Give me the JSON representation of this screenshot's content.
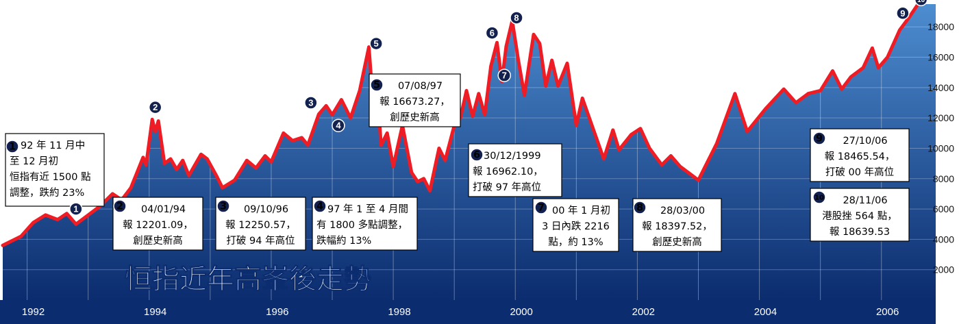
{
  "chart_data": {
    "type": "area",
    "title": "恒指近年高峯後走勢",
    "xlabel": "",
    "ylabel": "",
    "xlim": [
      1991.6,
      2006.8
    ],
    "ylim": [
      0,
      19500
    ],
    "y_ticks": [
      "2000",
      "4000",
      "6000",
      "8000",
      "10000",
      "12000",
      "14000",
      "16000",
      "18000"
    ],
    "x_ticks": [
      "1992",
      "1994",
      "1996",
      "1998",
      "2000",
      "2002",
      "2004",
      "2006"
    ],
    "series": [
      {
        "points": [
          [
            1991.6,
            3600
          ],
          [
            1991.9,
            4200
          ],
          [
            1992.1,
            5100
          ],
          [
            1992.3,
            5600
          ],
          [
            1992.5,
            5300
          ],
          [
            1992.65,
            5700
          ],
          [
            1992.8,
            5000
          ],
          [
            1992.9,
            5300
          ],
          [
            1993.2,
            6200
          ],
          [
            1993.4,
            7000
          ],
          [
            1993.55,
            6600
          ],
          [
            1993.7,
            7400
          ],
          [
            1993.9,
            9400
          ],
          [
            1993.95,
            8900
          ],
          [
            1994.05,
            11900
          ],
          [
            1994.1,
            11100
          ],
          [
            1994.15,
            11800
          ],
          [
            1994.25,
            9000
          ],
          [
            1994.35,
            9300
          ],
          [
            1994.45,
            8600
          ],
          [
            1994.55,
            9200
          ],
          [
            1994.65,
            8200
          ],
          [
            1994.85,
            9600
          ],
          [
            1994.95,
            9300
          ],
          [
            1995.1,
            8200
          ],
          [
            1995.2,
            7400
          ],
          [
            1995.4,
            7900
          ],
          [
            1995.6,
            9200
          ],
          [
            1995.75,
            8700
          ],
          [
            1995.9,
            9500
          ],
          [
            1996.0,
            9100
          ],
          [
            1996.2,
            11000
          ],
          [
            1996.35,
            10500
          ],
          [
            1996.5,
            10700
          ],
          [
            1996.6,
            10200
          ],
          [
            1996.78,
            12250
          ],
          [
            1996.9,
            12800
          ],
          [
            1997.0,
            12200
          ],
          [
            1997.15,
            13200
          ],
          [
            1997.3,
            12000
          ],
          [
            1997.45,
            13800
          ],
          [
            1997.6,
            16673
          ],
          [
            1997.65,
            14000
          ],
          [
            1997.72,
            14800
          ],
          [
            1997.8,
            10200
          ],
          [
            1997.9,
            11000
          ],
          [
            1998.0,
            8800
          ],
          [
            1998.15,
            11500
          ],
          [
            1998.3,
            8400
          ],
          [
            1998.4,
            7800
          ],
          [
            1998.5,
            8000
          ],
          [
            1998.6,
            7200
          ],
          [
            1998.75,
            10000
          ],
          [
            1998.85,
            9200
          ],
          [
            1999.0,
            11500
          ],
          [
            1999.1,
            12000
          ],
          [
            1999.2,
            13800
          ],
          [
            1999.3,
            12100
          ],
          [
            1999.4,
            13600
          ],
          [
            1999.5,
            12200
          ],
          [
            1999.6,
            15400
          ],
          [
            1999.7,
            16962
          ],
          [
            1999.78,
            14400
          ],
          [
            1999.85,
            16700
          ],
          [
            1999.95,
            18397
          ],
          [
            2000.05,
            15800
          ],
          [
            2000.15,
            13500
          ],
          [
            2000.3,
            17500
          ],
          [
            2000.4,
            16900
          ],
          [
            2000.5,
            14100
          ],
          [
            2000.6,
            15800
          ],
          [
            2000.7,
            14100
          ],
          [
            2000.85,
            15600
          ],
          [
            2001.0,
            11500
          ],
          [
            2001.1,
            13300
          ],
          [
            2001.3,
            11000
          ],
          [
            2001.45,
            9300
          ],
          [
            2001.6,
            11200
          ],
          [
            2001.7,
            9900
          ],
          [
            2001.9,
            10900
          ],
          [
            2002.05,
            11300
          ],
          [
            2002.2,
            10000
          ],
          [
            2002.4,
            8900
          ],
          [
            2002.55,
            9500
          ],
          [
            2002.7,
            8800
          ],
          [
            2002.9,
            8200
          ],
          [
            2003.0,
            7900
          ],
          [
            2003.3,
            10300
          ],
          [
            2003.6,
            13600
          ],
          [
            2003.8,
            11100
          ],
          [
            2004.1,
            12600
          ],
          [
            2004.4,
            13900
          ],
          [
            2004.6,
            13000
          ],
          [
            2004.8,
            13600
          ],
          [
            2005.0,
            13800
          ],
          [
            2005.2,
            15100
          ],
          [
            2005.35,
            13900
          ],
          [
            2005.5,
            14700
          ],
          [
            2005.7,
            15300
          ],
          [
            2005.85,
            16600
          ],
          [
            2005.95,
            15300
          ],
          [
            2006.1,
            16000
          ],
          [
            2006.3,
            17800
          ],
          [
            2006.45,
            18600
          ],
          [
            2006.6,
            19500
          ]
        ]
      }
    ],
    "annotations": [
      {
        "id": "1",
        "lines": [
          "92 年 11 月中",
          "至 12 月初",
          "恒指有近 1500 點",
          "調整，跌約 23%"
        ]
      },
      {
        "id": "2",
        "lines": [
          "04/01/94",
          "報 12201.09，",
          "創歷史新高"
        ]
      },
      {
        "id": "3",
        "lines": [
          "09/10/96",
          "報 12250.57，",
          "打破 94 年高位"
        ]
      },
      {
        "id": "4",
        "lines": [
          "97 年 1 至 4 月間",
          "有 1800 多點調整，",
          "跌幅約 13%"
        ]
      },
      {
        "id": "5",
        "lines": [
          "07/08/97",
          "報 16673.27，",
          "創歷史新高"
        ]
      },
      {
        "id": "6",
        "lines": [
          "30/12/1999",
          "報 16962.10，",
          "打破 97 年高位"
        ]
      },
      {
        "id": "7",
        "lines": [
          "00 年 1 月初",
          "3 日內跌 2216",
          "點，約 13%"
        ]
      },
      {
        "id": "8",
        "lines": [
          "28/03/00",
          "報 18397.52，",
          "創歷史新高"
        ]
      },
      {
        "id": "9",
        "lines": [
          "27/10/06",
          "報 18465.54，",
          "打破 00 年高位"
        ]
      },
      {
        "id": "10",
        "lines": [
          "28/11/06",
          "港股挫 564 點，",
          "報 18639.53"
        ]
      }
    ]
  },
  "colors": {
    "area_top": "#4d8dd0",
    "area_bottom": "#0b2c6e",
    "line": "#ee1c24",
    "box_border": "#000000",
    "marker_fill": "#13214f",
    "background": "#ffffff"
  }
}
